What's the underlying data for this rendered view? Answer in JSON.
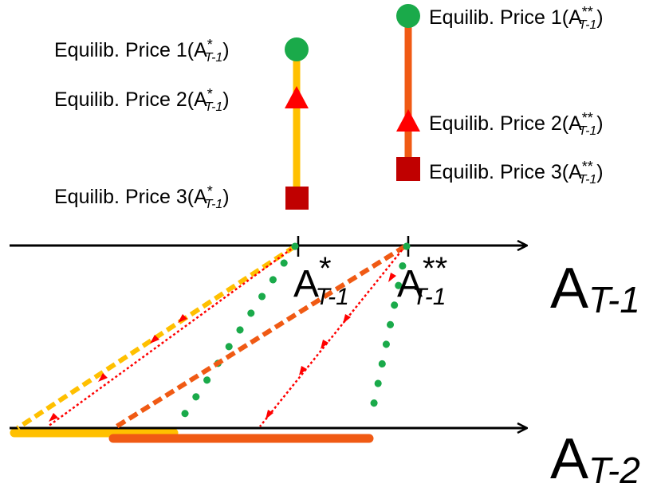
{
  "legend_left": {
    "items": [
      {
        "text": "Equilib.  Price 1(A",
        "sub": "T-1",
        "sup": "*",
        "close": ")"
      },
      {
        "text": "Equilib.  Price 2(A",
        "sub": "T-1",
        "sup": "*",
        "close": ")"
      },
      {
        "text": "Equilib.  Price 3(A",
        "sub": "T-1",
        "sup": "*",
        "close": ")"
      }
    ]
  },
  "legend_right": {
    "items": [
      {
        "text": "Equilib.  Price 1(A",
        "sub": "T-1",
        "sup": "**",
        "close": ")"
      },
      {
        "text": "Equilib.  Price 2(A",
        "sub": "T-1",
        "sup": "**",
        "close": ")"
      },
      {
        "text": "Equilib.  Price 3(A",
        "sub": "T-1",
        "sup": "**",
        "close": ")"
      }
    ]
  },
  "axes": {
    "top": {
      "base": "A",
      "sub": "T-1"
    },
    "bottom": {
      "base": "A",
      "sub": "T-2"
    }
  },
  "points": {
    "star": {
      "base": "A",
      "sup": "*",
      "sub": "T-1"
    },
    "double_star": {
      "base": "A",
      "sup": "**",
      "sub": "T-1"
    }
  },
  "colors": {
    "price1": "#1aaa4a",
    "price2": "#ff0000",
    "price3": "#c00000",
    "yellow_line": "#ffc000",
    "orange_line": "#f05a14",
    "axis": "#000000"
  }
}
